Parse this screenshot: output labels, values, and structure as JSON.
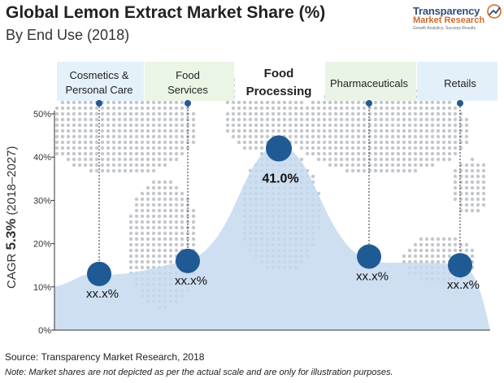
{
  "header": {
    "title": "Global Lemon Extract Market Share (%)",
    "subtitle": "By End Use (2018)"
  },
  "logo": {
    "name": "Transparency",
    "sub": "Market Research",
    "tagline": "Growth Analytics, Success Results"
  },
  "cagr": {
    "prefix": "CAGR ",
    "value": "5.3%",
    "suffix": " (2018–2027)"
  },
  "footer": {
    "source": "Source: Transparency Market Research, 2018",
    "note": "Note: Market shares are not depicted as per the actual scale and are only for illustration purposes."
  },
  "chart_data": {
    "type": "area",
    "ylim": [
      0,
      50
    ],
    "yticks": [
      "0%",
      "10%",
      "20%",
      "30%",
      "40%",
      "50%"
    ],
    "categories": [
      "Cosmetics & Personal Care",
      "Food Services",
      "Food Processing",
      "Pharmaceuticals",
      "Retails"
    ],
    "values": [
      13,
      16,
      42,
      17,
      15
    ],
    "value_labels": [
      "xx.x%",
      "xx.x%",
      "41.0%",
      "xx.x%",
      "xx.x%"
    ],
    "highlight_index": 2,
    "colors": {
      "marker": "#1f5a94",
      "area": "#c6d9ee",
      "header_bg": [
        "#e4f1f9",
        "#ebf5e6",
        "#ffffff",
        "#eaf4e6",
        "#e4f0f9"
      ],
      "dots": "#c4c7cc",
      "axis": "#333333"
    }
  }
}
